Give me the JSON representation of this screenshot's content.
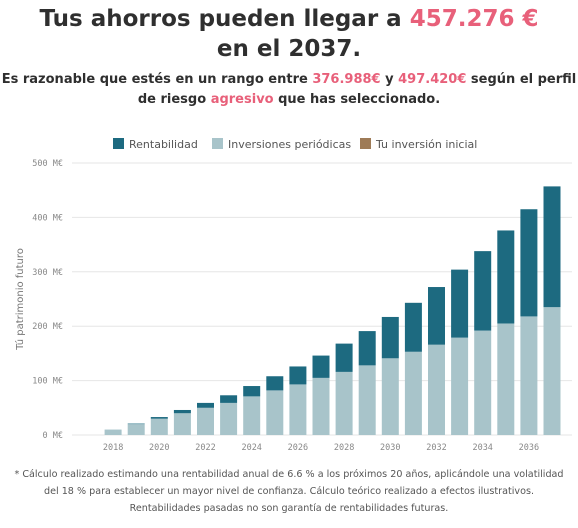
{
  "header": {
    "title_prefix": "Tus ahorros pueden llegar a ",
    "title_amount": "457.276 €",
    "title_suffix": "en el 2037."
  },
  "summary": {
    "part1": "Es razonable que estés en un rango entre ",
    "low": "376.988€",
    "part2": " y ",
    "high": "497.420€",
    "part3": " según el perfil de riesgo ",
    "profile": "agresivo",
    "part4": " que has seleccionado."
  },
  "footnote": {
    "text": "* Cálculo realizado estimando una rentabilidad anual de 6.6 % a los próximos 20 años, aplicándole una volatilidad del 18 % para establecer un mayor nivel de confianza. Cálculo teórico realizado a efectos ilustrativos. Rentabilidades pasadas no son garantía de rentabilidades futuras."
  },
  "colors": {
    "rentabilidad": "#1d6a80",
    "inversiones": "#a8c4ca",
    "inicial": "#9e7b57",
    "highlight": "#e8607a"
  },
  "chart_data": {
    "type": "bar",
    "stacked": true,
    "ylabel": "Tú patrimonio futuro",
    "ylim": [
      0,
      500
    ],
    "y_ticks": [
      0,
      100,
      200,
      300,
      400,
      500
    ],
    "y_tick_labels": [
      "0 M€",
      "100 M€",
      "200 M€",
      "300 M€",
      "400 M€",
      "500 M€"
    ],
    "x_tick_labels": [
      "2018",
      "2020",
      "2022",
      "2024",
      "2026",
      "2028",
      "2030",
      "2032",
      "2034",
      "2036"
    ],
    "categories": [
      2017,
      2018,
      2019,
      2020,
      2021,
      2022,
      2023,
      2024,
      2025,
      2026,
      2027,
      2028,
      2029,
      2030,
      2031,
      2032,
      2033,
      2034,
      2035,
      2036,
      2037
    ],
    "legend_position": "top-center",
    "grid": true,
    "series": [
      {
        "name": "Rentabilidad",
        "color": "#1d6a80",
        "values": [
          0,
          0,
          1,
          3,
          6,
          9,
          14,
          19,
          26,
          33,
          41,
          52,
          63,
          76,
          90,
          106,
          125,
          146,
          171,
          197,
          222
        ]
      },
      {
        "name": "Inversiones periódicas",
        "color": "#a8c4ca",
        "values": [
          0,
          10,
          20,
          30,
          40,
          50,
          59,
          71,
          82,
          93,
          105,
          116,
          128,
          141,
          153,
          166,
          179,
          192,
          205,
          218,
          235
        ]
      },
      {
        "name": "Tu inversión inicial",
        "color": "#9e7b57",
        "values": [
          0,
          0,
          0,
          0,
          0,
          0,
          0,
          0,
          0,
          0,
          0,
          0,
          0,
          0,
          0,
          0,
          0,
          0,
          0,
          0,
          0
        ]
      }
    ]
  }
}
